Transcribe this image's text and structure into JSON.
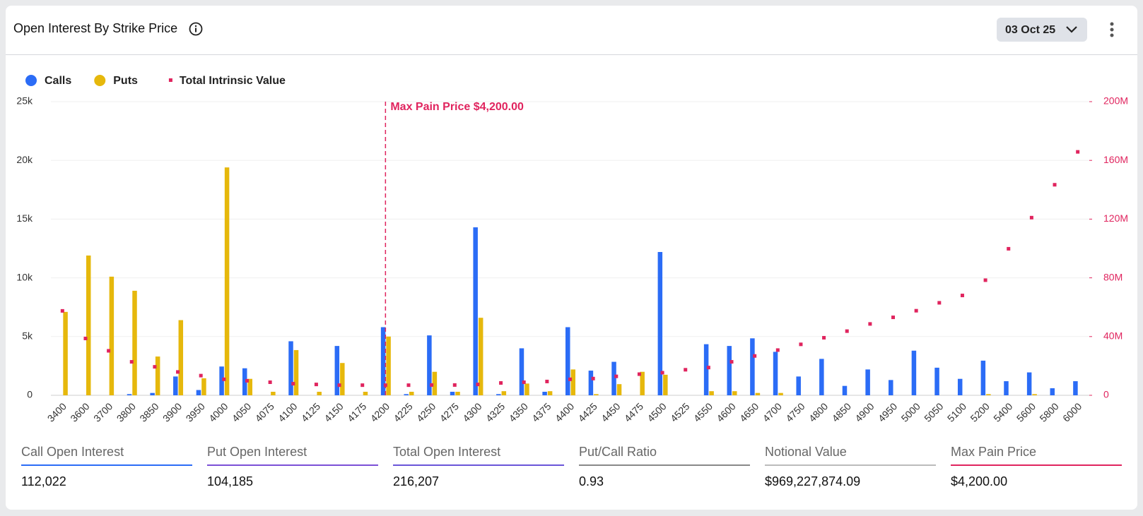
{
  "header": {
    "title": "Open Interest By Strike Price",
    "date": "03 Oct 25"
  },
  "chart_data": {
    "type": "bar",
    "categories": [
      "3400",
      "3600",
      "3700",
      "3800",
      "3850",
      "3900",
      "3950",
      "4000",
      "4050",
      "4075",
      "4100",
      "4125",
      "4150",
      "4175",
      "4200",
      "4225",
      "4250",
      "4275",
      "4300",
      "4325",
      "4350",
      "4375",
      "4400",
      "4425",
      "4450",
      "4475",
      "4500",
      "4525",
      "4550",
      "4600",
      "4650",
      "4700",
      "4750",
      "4800",
      "4850",
      "4900",
      "4950",
      "5000",
      "5050",
      "5100",
      "5200",
      "5400",
      "5600",
      "5800",
      "6000"
    ],
    "series": [
      {
        "name": "Calls",
        "color": "#2b6cf6",
        "values": [
          0,
          0,
          0,
          100,
          200,
          1600,
          450,
          2450,
          2300,
          0,
          4600,
          0,
          4200,
          0,
          5800,
          100,
          5100,
          300,
          14300,
          100,
          4000,
          300,
          5800,
          2100,
          2850,
          0,
          12200,
          0,
          4350,
          4200,
          4850,
          3700,
          1600,
          3100,
          800,
          2200,
          1300,
          3800,
          2350,
          1400,
          2950,
          1200,
          1950,
          600,
          1200
        ]
      },
      {
        "name": "Puts",
        "color": "#e6b80c",
        "values": [
          7100,
          11900,
          10100,
          8900,
          3300,
          6400,
          1450,
          19400,
          1400,
          300,
          3850,
          300,
          2750,
          300,
          5000,
          300,
          2000,
          300,
          6600,
          350,
          1000,
          350,
          2200,
          100,
          950,
          2000,
          1750,
          0,
          350,
          350,
          200,
          200,
          0,
          0,
          0,
          0,
          0,
          0,
          0,
          0,
          100,
          0,
          100,
          0,
          0
        ]
      },
      {
        "name": "Total Intrinsic Value",
        "color": "#e0245e",
        "axis": "y2",
        "type": "scatter",
        "values": [
          57500000,
          38700000,
          30300000,
          22800000,
          19400000,
          15900000,
          13400000,
          10900000,
          9900000,
          8900000,
          7900000,
          7400000,
          6900000,
          6900000,
          6900000,
          6900000,
          7000000,
          7000000,
          7400000,
          8400000,
          8900000,
          9400000,
          10900000,
          11400000,
          12900000,
          14400000,
          15400000,
          17400000,
          18900000,
          22800000,
          26800000,
          30800000,
          34700000,
          39200000,
          43700000,
          48600000,
          53100000,
          57600000,
          63000000,
          68000000,
          78400000,
          99800000,
          121000000,
          143400000,
          165800000
        ]
      }
    ],
    "ylim": [
      0,
      25000
    ],
    "yticks": [
      0,
      {
        "value": 5000,
        "label": "5k"
      },
      {
        "value": 10000,
        "label": "10k"
      },
      {
        "value": 15000,
        "label": "15k"
      },
      {
        "value": 20000,
        "label": "20k"
      },
      {
        "value": 25000,
        "label": "25k"
      }
    ],
    "y2lim": [
      0,
      200000000
    ],
    "y2ticks": [
      0,
      {
        "value": 40000000,
        "label": "40M"
      },
      {
        "value": 80000000,
        "label": "80M"
      },
      {
        "value": 120000000,
        "label": "120M"
      },
      {
        "value": 160000000,
        "label": "160M"
      },
      {
        "value": 200000000,
        "label": "200M"
      }
    ],
    "grid": true,
    "annotation": {
      "text": "Max Pain Price $4,200.00",
      "category": "4200",
      "color": "#e0245e"
    }
  },
  "stats": [
    {
      "label": "Call Open Interest",
      "value": "112,022"
    },
    {
      "label": "Put Open Interest",
      "value": "104,185"
    },
    {
      "label": "Total Open Interest",
      "value": "216,207"
    },
    {
      "label": "Put/Call Ratio",
      "value": "0.93"
    },
    {
      "label": "Notional Value",
      "value": "$969,227,874.09"
    },
    {
      "label": "Max Pain Price",
      "value": "$4,200.00"
    }
  ]
}
